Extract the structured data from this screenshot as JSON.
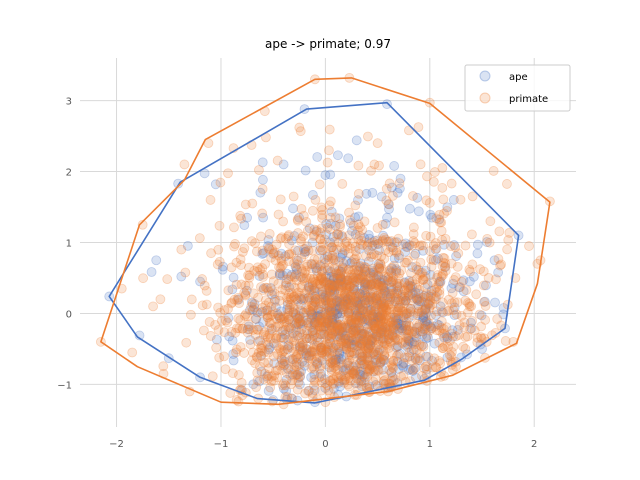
{
  "chart_data": {
    "type": "scatter",
    "title": "ape -> primate; 0.97",
    "xlabel": "",
    "ylabel": "",
    "xlim": [
      -2.35,
      2.4
    ],
    "ylim": [
      -1.6,
      3.6
    ],
    "xticks": [
      -2,
      -1,
      0,
      1,
      2
    ],
    "yticks": [
      -1,
      0,
      1,
      2,
      3
    ],
    "grid": true,
    "legend_position": "top-right",
    "series": [
      {
        "name": "ape",
        "color": "#4472c4",
        "marker": "circle",
        "alpha": 0.2,
        "sampled_points": [
          [
            -2.07,
            0.24
          ],
          [
            -1.78,
            -0.31
          ],
          [
            -1.62,
            0.75
          ],
          [
            -1.41,
            1.83
          ],
          [
            -1.38,
            0.52
          ],
          [
            -1.2,
            0.45
          ],
          [
            -1.05,
            1.82
          ],
          [
            -0.98,
            0.66
          ],
          [
            -0.75,
            1.35
          ],
          [
            -0.6,
            2.13
          ],
          [
            -0.55,
            0.95
          ],
          [
            -0.4,
            2.1
          ],
          [
            -0.31,
            1.48
          ],
          [
            -0.2,
            2.88
          ],
          [
            -0.15,
            1.2
          ],
          [
            0.0,
            1.95
          ],
          [
            0.12,
            2.23
          ],
          [
            0.3,
            2.44
          ],
          [
            0.45,
            1.7
          ],
          [
            0.59,
            2.95
          ],
          [
            0.72,
            1.9
          ],
          [
            0.88,
            1.63
          ],
          [
            1.02,
            1.35
          ],
          [
            1.23,
            1.6
          ],
          [
            1.46,
            0.97
          ],
          [
            1.62,
            0.75
          ],
          [
            1.85,
            1.1
          ],
          [
            1.72,
            -0.21
          ],
          [
            1.5,
            -0.5
          ],
          [
            1.3,
            -0.62
          ],
          [
            0.95,
            -0.92
          ],
          [
            0.6,
            -1.05
          ],
          [
            0.2,
            -1.17
          ],
          [
            -0.1,
            -1.25
          ],
          [
            -0.5,
            -1.22
          ],
          [
            -0.8,
            -1.08
          ],
          [
            -1.2,
            -0.9
          ],
          [
            -1.5,
            -0.63
          ]
        ],
        "hull": [
          [
            -2.07,
            0.24
          ],
          [
            -1.39,
            1.85
          ],
          [
            -0.18,
            2.88
          ],
          [
            0.59,
            2.97
          ],
          [
            1.85,
            1.1
          ],
          [
            1.72,
            -0.21
          ],
          [
            1.3,
            -0.65
          ],
          [
            0.95,
            -0.94
          ],
          [
            -0.1,
            -1.26
          ],
          [
            -0.65,
            -1.2
          ],
          [
            -1.2,
            -0.9
          ],
          [
            -1.8,
            -0.33
          ]
        ]
      },
      {
        "name": "primate",
        "color": "#ed7d31",
        "marker": "circle",
        "alpha": 0.2,
        "sampled_points": [
          [
            -2.15,
            -0.4
          ],
          [
            -1.85,
            -0.55
          ],
          [
            -1.75,
            1.25
          ],
          [
            -1.95,
            0.35
          ],
          [
            -1.58,
            0.2
          ],
          [
            -1.35,
            2.1
          ],
          [
            -1.12,
            2.4
          ],
          [
            -0.88,
            2.33
          ],
          [
            -0.58,
            2.85
          ],
          [
            -0.25,
            2.62
          ],
          [
            -0.1,
            3.3
          ],
          [
            0.23,
            3.32
          ],
          [
            0.5,
            2.4
          ],
          [
            0.8,
            2.58
          ],
          [
            1.0,
            2.97
          ],
          [
            1.12,
            2.05
          ],
          [
            1.41,
            1.65
          ],
          [
            1.58,
            1.3
          ],
          [
            1.95,
            0.95
          ],
          [
            2.15,
            1.58
          ],
          [
            2.03,
            0.7
          ],
          [
            1.82,
            0.5
          ],
          [
            1.8,
            -0.4
          ],
          [
            1.52,
            -0.35
          ],
          [
            1.25,
            -0.75
          ],
          [
            0.6,
            -1.1
          ],
          [
            0.0,
            -1.25
          ],
          [
            -0.4,
            -1.28
          ],
          [
            -0.85,
            -1.22
          ],
          [
            -1.3,
            -1.1
          ],
          [
            -1.55,
            -0.85
          ],
          [
            -1.65,
            0.1
          ],
          [
            -1.38,
            0.9
          ],
          [
            -1.1,
            1.6
          ],
          [
            -0.7,
            1.55
          ],
          [
            0.05,
            1.35
          ],
          [
            0.55,
            1.25
          ],
          [
            1.2,
            0.95
          ]
        ],
        "hull": [
          [
            -2.15,
            -0.4
          ],
          [
            -1.78,
            1.25
          ],
          [
            -1.35,
            1.88
          ],
          [
            -1.15,
            2.45
          ],
          [
            -0.1,
            3.3
          ],
          [
            0.25,
            3.32
          ],
          [
            1.0,
            2.96
          ],
          [
            2.15,
            1.57
          ],
          [
            2.03,
            0.42
          ],
          [
            1.83,
            -0.42
          ],
          [
            1.22,
            -0.87
          ],
          [
            0.6,
            -1.1
          ],
          [
            -0.45,
            -1.28
          ],
          [
            -1.0,
            -1.25
          ],
          [
            -1.8,
            -0.75
          ]
        ]
      }
    ]
  }
}
